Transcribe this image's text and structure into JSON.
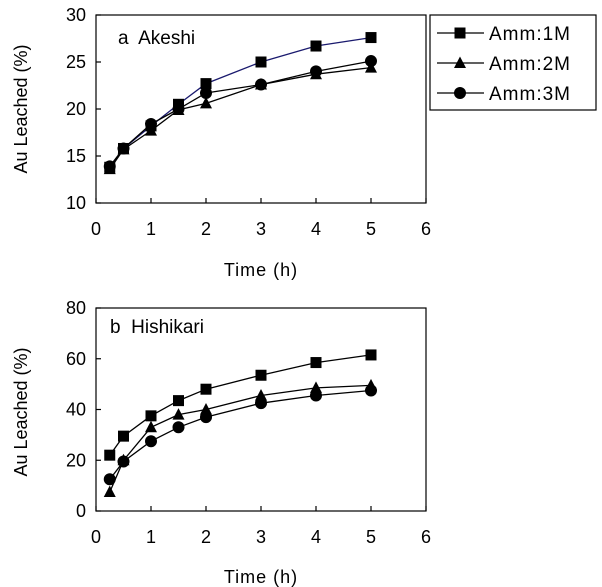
{
  "colors": {
    "axis": "#000000",
    "series_line_1": "#1a1a6e",
    "series_line": "#000000",
    "marker": "#000000"
  },
  "legend": {
    "placement": "top-right",
    "entries": [
      {
        "label": "Amm:1M",
        "marker": "square"
      },
      {
        "label": "Amm:2M",
        "marker": "triangle"
      },
      {
        "label": "Amm:3M",
        "marker": "circle"
      }
    ]
  },
  "chart_data": [
    {
      "type": "line",
      "title": "a  Akeshi",
      "xlabel": "Time (h)",
      "ylabel": "Au Leached (%)",
      "xlim": [
        0,
        6
      ],
      "ylim": [
        10,
        30
      ],
      "xticks": [
        "0",
        "1",
        "2",
        "3",
        "4",
        "5",
        "6"
      ],
      "yticks": [
        "10",
        "15",
        "20",
        "25",
        "30"
      ],
      "grid": false,
      "series": [
        {
          "name": "Amm:1M",
          "marker": "square",
          "x": [
            0.25,
            0.5,
            1,
            1.5,
            2,
            3,
            4,
            5
          ],
          "y": [
            13.8,
            15.8,
            18.2,
            20.5,
            22.7,
            25.0,
            26.7,
            27.6
          ]
        },
        {
          "name": "Amm:2M",
          "marker": "triangle",
          "x": [
            0.25,
            0.5,
            1,
            1.5,
            2,
            3,
            4,
            5
          ],
          "y": [
            13.6,
            15.7,
            17.7,
            19.9,
            20.6,
            22.6,
            23.7,
            24.4
          ]
        },
        {
          "name": "Amm:3M",
          "marker": "circle",
          "x": [
            0.25,
            0.5,
            1,
            1.5,
            2,
            3,
            4,
            5
          ],
          "y": [
            13.9,
            15.8,
            18.4,
            20.0,
            21.7,
            22.6,
            24.0,
            25.1
          ]
        }
      ]
    },
    {
      "type": "line",
      "title": "b  Hishikari",
      "xlabel": "Time (h)",
      "ylabel": "Au Leached (%)",
      "xlim": [
        0,
        6
      ],
      "ylim": [
        0,
        80
      ],
      "xticks": [
        "0",
        "1",
        "2",
        "3",
        "4",
        "5",
        "6"
      ],
      "yticks": [
        "0",
        "20",
        "40",
        "60",
        "80"
      ],
      "grid": false,
      "series": [
        {
          "name": "Amm:1M",
          "marker": "square",
          "x": [
            0.25,
            0.5,
            1,
            1.5,
            2,
            3,
            4,
            5
          ],
          "y": [
            22,
            29.5,
            37.5,
            43.5,
            48,
            53.5,
            58.5,
            61.5
          ]
        },
        {
          "name": "Amm:2M",
          "marker": "triangle",
          "x": [
            0.25,
            0.5,
            1,
            1.5,
            2,
            3,
            4,
            5
          ],
          "y": [
            7.5,
            20,
            33,
            38,
            40,
            45.5,
            48.5,
            49.5
          ]
        },
        {
          "name": "Amm:3M",
          "marker": "circle",
          "x": [
            0.25,
            0.5,
            1,
            1.5,
            2,
            3,
            4,
            5
          ],
          "y": [
            12.5,
            19.5,
            27.5,
            33,
            37,
            42.5,
            45.5,
            47.5
          ]
        }
      ]
    }
  ]
}
